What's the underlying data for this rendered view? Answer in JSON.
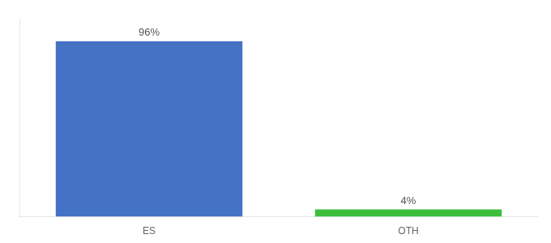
{
  "chart_data": {
    "type": "bar",
    "categories": [
      "ES",
      "OTH"
    ],
    "values": [
      96,
      4
    ],
    "colors": [
      "#4472c4",
      "#3dbf3d"
    ],
    "ylim": [
      0,
      108
    ],
    "yticks": [],
    "grid": false,
    "tick_labels": "x",
    "data_labels": true,
    "value_labels": [
      "96%",
      "4%"
    ]
  }
}
